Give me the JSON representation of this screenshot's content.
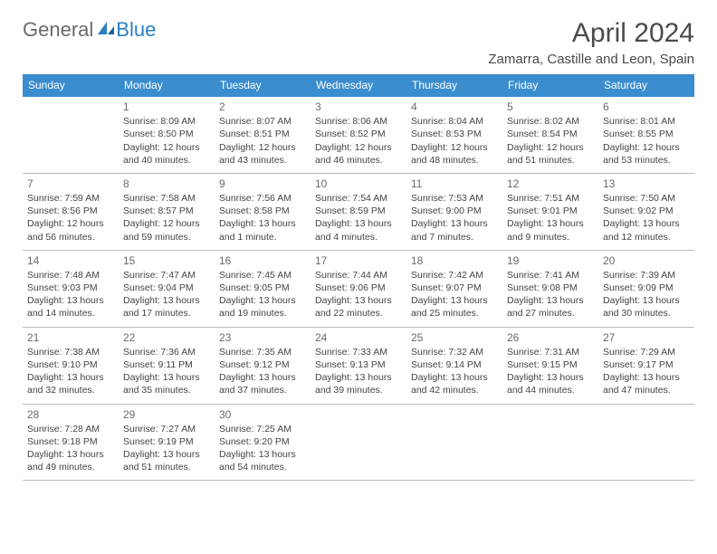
{
  "logo": {
    "general": "General",
    "blue": "Blue"
  },
  "title": "April 2024",
  "location": "Zamarra, Castille and Leon, Spain",
  "colors": {
    "headerBar": "#3a8dce",
    "ruleTop": "#3a8dce",
    "logoBlue": "#2a7fc4",
    "text": "#444"
  },
  "dayNames": [
    "Sunday",
    "Monday",
    "Tuesday",
    "Wednesday",
    "Thursday",
    "Friday",
    "Saturday"
  ],
  "weeks": [
    [
      null,
      {
        "n": "1",
        "sr": "Sunrise: 8:09 AM",
        "ss": "Sunset: 8:50 PM",
        "d1": "Daylight: 12 hours",
        "d2": "and 40 minutes."
      },
      {
        "n": "2",
        "sr": "Sunrise: 8:07 AM",
        "ss": "Sunset: 8:51 PM",
        "d1": "Daylight: 12 hours",
        "d2": "and 43 minutes."
      },
      {
        "n": "3",
        "sr": "Sunrise: 8:06 AM",
        "ss": "Sunset: 8:52 PM",
        "d1": "Daylight: 12 hours",
        "d2": "and 46 minutes."
      },
      {
        "n": "4",
        "sr": "Sunrise: 8:04 AM",
        "ss": "Sunset: 8:53 PM",
        "d1": "Daylight: 12 hours",
        "d2": "and 48 minutes."
      },
      {
        "n": "5",
        "sr": "Sunrise: 8:02 AM",
        "ss": "Sunset: 8:54 PM",
        "d1": "Daylight: 12 hours",
        "d2": "and 51 minutes."
      },
      {
        "n": "6",
        "sr": "Sunrise: 8:01 AM",
        "ss": "Sunset: 8:55 PM",
        "d1": "Daylight: 12 hours",
        "d2": "and 53 minutes."
      }
    ],
    [
      {
        "n": "7",
        "sr": "Sunrise: 7:59 AM",
        "ss": "Sunset: 8:56 PM",
        "d1": "Daylight: 12 hours",
        "d2": "and 56 minutes."
      },
      {
        "n": "8",
        "sr": "Sunrise: 7:58 AM",
        "ss": "Sunset: 8:57 PM",
        "d1": "Daylight: 12 hours",
        "d2": "and 59 minutes."
      },
      {
        "n": "9",
        "sr": "Sunrise: 7:56 AM",
        "ss": "Sunset: 8:58 PM",
        "d1": "Daylight: 13 hours",
        "d2": "and 1 minute."
      },
      {
        "n": "10",
        "sr": "Sunrise: 7:54 AM",
        "ss": "Sunset: 8:59 PM",
        "d1": "Daylight: 13 hours",
        "d2": "and 4 minutes."
      },
      {
        "n": "11",
        "sr": "Sunrise: 7:53 AM",
        "ss": "Sunset: 9:00 PM",
        "d1": "Daylight: 13 hours",
        "d2": "and 7 minutes."
      },
      {
        "n": "12",
        "sr": "Sunrise: 7:51 AM",
        "ss": "Sunset: 9:01 PM",
        "d1": "Daylight: 13 hours",
        "d2": "and 9 minutes."
      },
      {
        "n": "13",
        "sr": "Sunrise: 7:50 AM",
        "ss": "Sunset: 9:02 PM",
        "d1": "Daylight: 13 hours",
        "d2": "and 12 minutes."
      }
    ],
    [
      {
        "n": "14",
        "sr": "Sunrise: 7:48 AM",
        "ss": "Sunset: 9:03 PM",
        "d1": "Daylight: 13 hours",
        "d2": "and 14 minutes."
      },
      {
        "n": "15",
        "sr": "Sunrise: 7:47 AM",
        "ss": "Sunset: 9:04 PM",
        "d1": "Daylight: 13 hours",
        "d2": "and 17 minutes."
      },
      {
        "n": "16",
        "sr": "Sunrise: 7:45 AM",
        "ss": "Sunset: 9:05 PM",
        "d1": "Daylight: 13 hours",
        "d2": "and 19 minutes."
      },
      {
        "n": "17",
        "sr": "Sunrise: 7:44 AM",
        "ss": "Sunset: 9:06 PM",
        "d1": "Daylight: 13 hours",
        "d2": "and 22 minutes."
      },
      {
        "n": "18",
        "sr": "Sunrise: 7:42 AM",
        "ss": "Sunset: 9:07 PM",
        "d1": "Daylight: 13 hours",
        "d2": "and 25 minutes."
      },
      {
        "n": "19",
        "sr": "Sunrise: 7:41 AM",
        "ss": "Sunset: 9:08 PM",
        "d1": "Daylight: 13 hours",
        "d2": "and 27 minutes."
      },
      {
        "n": "20",
        "sr": "Sunrise: 7:39 AM",
        "ss": "Sunset: 9:09 PM",
        "d1": "Daylight: 13 hours",
        "d2": "and 30 minutes."
      }
    ],
    [
      {
        "n": "21",
        "sr": "Sunrise: 7:38 AM",
        "ss": "Sunset: 9:10 PM",
        "d1": "Daylight: 13 hours",
        "d2": "and 32 minutes."
      },
      {
        "n": "22",
        "sr": "Sunrise: 7:36 AM",
        "ss": "Sunset: 9:11 PM",
        "d1": "Daylight: 13 hours",
        "d2": "and 35 minutes."
      },
      {
        "n": "23",
        "sr": "Sunrise: 7:35 AM",
        "ss": "Sunset: 9:12 PM",
        "d1": "Daylight: 13 hours",
        "d2": "and 37 minutes."
      },
      {
        "n": "24",
        "sr": "Sunrise: 7:33 AM",
        "ss": "Sunset: 9:13 PM",
        "d1": "Daylight: 13 hours",
        "d2": "and 39 minutes."
      },
      {
        "n": "25",
        "sr": "Sunrise: 7:32 AM",
        "ss": "Sunset: 9:14 PM",
        "d1": "Daylight: 13 hours",
        "d2": "and 42 minutes."
      },
      {
        "n": "26",
        "sr": "Sunrise: 7:31 AM",
        "ss": "Sunset: 9:15 PM",
        "d1": "Daylight: 13 hours",
        "d2": "and 44 minutes."
      },
      {
        "n": "27",
        "sr": "Sunrise: 7:29 AM",
        "ss": "Sunset: 9:17 PM",
        "d1": "Daylight: 13 hours",
        "d2": "and 47 minutes."
      }
    ],
    [
      {
        "n": "28",
        "sr": "Sunrise: 7:28 AM",
        "ss": "Sunset: 9:18 PM",
        "d1": "Daylight: 13 hours",
        "d2": "and 49 minutes."
      },
      {
        "n": "29",
        "sr": "Sunrise: 7:27 AM",
        "ss": "Sunset: 9:19 PM",
        "d1": "Daylight: 13 hours",
        "d2": "and 51 minutes."
      },
      {
        "n": "30",
        "sr": "Sunrise: 7:25 AM",
        "ss": "Sunset: 9:20 PM",
        "d1": "Daylight: 13 hours",
        "d2": "and 54 minutes."
      },
      null,
      null,
      null,
      null
    ]
  ]
}
